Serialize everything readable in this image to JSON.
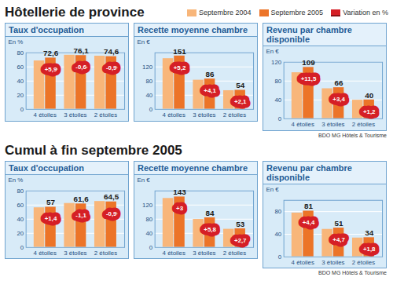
{
  "chart_data": [
    {
      "type": "bar",
      "section": "Hôtellerie de province",
      "title": "Taux d'occupation",
      "y_label": "En %",
      "categories": [
        "4 étoiles",
        "3 étoiles",
        "2 étoiles"
      ],
      "series": [
        {
          "name": "Septembre 2004",
          "color": "#f8b67a",
          "values": [
            68.6,
            76.6,
            75.3
          ]
        },
        {
          "name": "Septembre 2005",
          "color": "#ec7428",
          "values": [
            72.6,
            76.1,
            74.6
          ],
          "value_labels": [
            "72,6",
            "76,1",
            "74,6"
          ],
          "data_labels": true
        }
      ],
      "variation": {
        "name": "Variation en %",
        "color": "#d51f26",
        "values": [
          5.9,
          -0.6,
          -0.9
        ],
        "value_labels": [
          "+5,9",
          "-0,6",
          "-0,9"
        ]
      },
      "ylim": [
        0,
        80
      ],
      "yticks": [
        0,
        20,
        40,
        60,
        80
      ],
      "grid": true,
      "legend": "top-right"
    },
    {
      "type": "bar",
      "section": "Hôtellerie de province",
      "title": "Recette moyenne chambre",
      "y_label": "En €",
      "categories": [
        "4 étoiles",
        "3 étoiles",
        "2 étoiles"
      ],
      "series": [
        {
          "name": "Septembre 2004",
          "color": "#f8b67a",
          "values": [
            143.5,
            82.6,
            52.9
          ]
        },
        {
          "name": "Septembre 2005",
          "color": "#ec7428",
          "values": [
            151,
            86,
            54
          ],
          "value_labels": [
            "151",
            "86",
            "54"
          ],
          "data_labels": true
        }
      ],
      "variation": {
        "name": "Variation en %",
        "color": "#d51f26",
        "values": [
          5.2,
          4.1,
          2.1
        ],
        "value_labels": [
          "+5,2",
          "+4,1",
          "+2,1"
        ]
      },
      "ylim": [
        0,
        160
      ],
      "yticks": [
        0,
        40,
        80,
        120
      ],
      "grid": true
    },
    {
      "type": "bar",
      "section": "Hôtellerie de province",
      "title": "Revenu par chambre disponible",
      "y_label": "En €",
      "categories": [
        "4 étoiles",
        "3 étoiles",
        "2 étoiles"
      ],
      "series": [
        {
          "name": "Septembre 2004",
          "color": "#f8b67a",
          "values": [
            97.8,
            63.8,
            39.5
          ]
        },
        {
          "name": "Septembre 2005",
          "color": "#ec7428",
          "values": [
            109,
            66,
            40
          ],
          "value_labels": [
            "109",
            "66",
            "40"
          ],
          "data_labels": true
        }
      ],
      "variation": {
        "name": "Variation en %",
        "color": "#d51f26",
        "values": [
          11.5,
          3.4,
          1.2
        ],
        "value_labels": [
          "+11,5",
          "+3,4",
          "+1,2"
        ]
      },
      "ylim": [
        0,
        120
      ],
      "yticks": [
        0,
        40,
        80,
        120
      ],
      "grid": true,
      "annotations": [
        "BDO MG Hôtels & Tourisme"
      ]
    },
    {
      "type": "bar",
      "section": "Cumul à fin septembre 2005",
      "title": "Taux d'occupation",
      "y_label": "En %",
      "categories": [
        "4 étoiles",
        "3 étoiles",
        "2 étoiles"
      ],
      "series": [
        {
          "name": "Septembre 2004",
          "color": "#f8b67a",
          "values": [
            56.2,
            62.3,
            65.1
          ]
        },
        {
          "name": "Septembre 2005",
          "color": "#ec7428",
          "values": [
            57,
            61.6,
            64.5
          ],
          "value_labels": [
            "57",
            "61,6",
            "64,5"
          ],
          "data_labels": true
        }
      ],
      "variation": {
        "name": "Variation en %",
        "color": "#d51f26",
        "values": [
          1.4,
          -1.1,
          -0.9
        ],
        "value_labels": [
          "+1,4",
          "-1,1",
          "-0,9"
        ]
      },
      "ylim": [
        0,
        80
      ],
      "yticks": [
        0,
        20,
        40,
        60,
        80
      ],
      "grid": true
    },
    {
      "type": "bar",
      "section": "Cumul à fin septembre 2005",
      "title": "Recette moyenne chambre",
      "y_label": "En €",
      "categories": [
        "4 étoiles",
        "3 étoiles",
        "2 étoiles"
      ],
      "series": [
        {
          "name": "Septembre 2004",
          "color": "#f8b67a",
          "values": [
            138.8,
            79.4,
            51.6
          ]
        },
        {
          "name": "Septembre 2005",
          "color": "#ec7428",
          "values": [
            143,
            84,
            53
          ],
          "value_labels": [
            "143",
            "84",
            "53"
          ],
          "data_labels": true
        }
      ],
      "variation": {
        "name": "Variation en %",
        "color": "#d51f26",
        "values": [
          3,
          5.8,
          2.7
        ],
        "value_labels": [
          "+3",
          "+5,8",
          "+2,7"
        ]
      },
      "ylim": [
        0,
        160
      ],
      "yticks": [
        0,
        40,
        80,
        120
      ],
      "grid": true
    },
    {
      "type": "bar",
      "section": "Cumul à fin septembre 2005",
      "title": "Revenu par chambre disponible",
      "y_label": "En €",
      "categories": [
        "4 étoiles",
        "3 étoiles",
        "2 étoiles"
      ],
      "series": [
        {
          "name": "Septembre 2004",
          "color": "#f8b67a",
          "values": [
            77.6,
            48.7,
            33.4
          ]
        },
        {
          "name": "Septembre 2005",
          "color": "#ec7428",
          "values": [
            81,
            51,
            34
          ],
          "value_labels": [
            "81",
            "51",
            "34"
          ],
          "data_labels": true
        }
      ],
      "variation": {
        "name": "Variation en %",
        "color": "#d51f26",
        "values": [
          4.4,
          4.7,
          1.8
        ],
        "value_labels": [
          "+4,4",
          "+4,7",
          "+1,8"
        ]
      },
      "ylim": [
        0,
        100
      ],
      "yticks": [
        0,
        40,
        80
      ],
      "grid": true,
      "annotations": [
        "BDO MG Hôtels & Tourisme"
      ]
    }
  ]
}
